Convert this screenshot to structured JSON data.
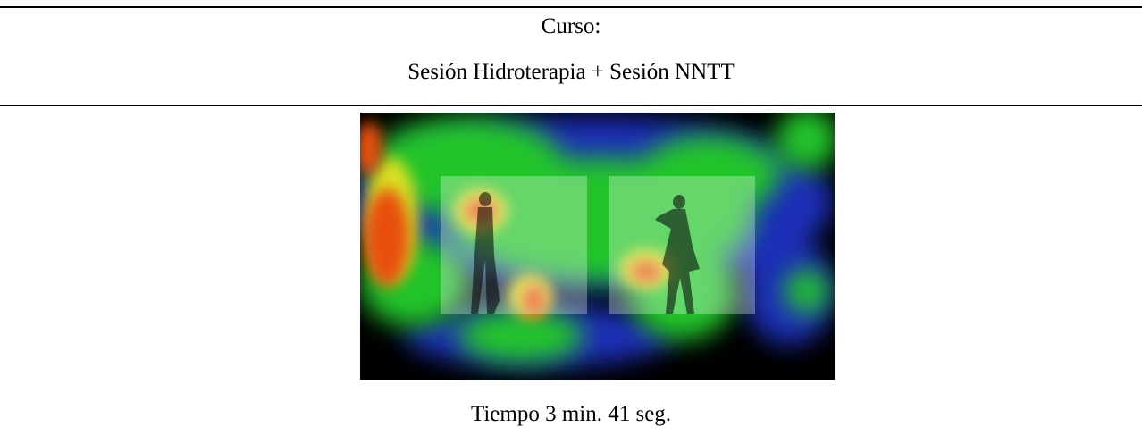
{
  "header": {
    "course_label": "Curso:",
    "session": "Sesión Hidroterapia + Sesión NNTT"
  },
  "figure": {
    "caption": "Tiempo 3 min. 41 seg."
  }
}
